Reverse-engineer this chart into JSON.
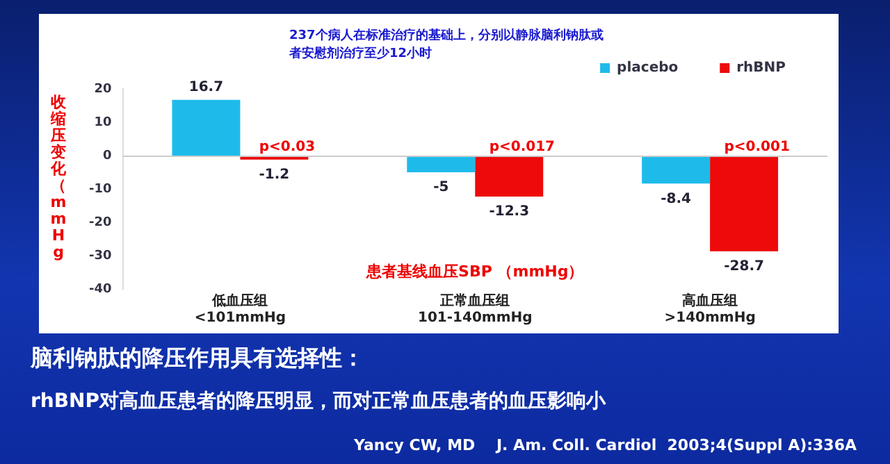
{
  "chart_data": {
    "type": "bar",
    "title": "脑利钠肽的降压作用具有选择性：",
    "subtitle": "rhBNP对高血压患者的降压明显，而对正常血压患者的血压影响小",
    "xlabel": "患者基线血压SBP （mmHg）",
    "ylabel": "收缩压变化（mmHg",
    "categories": [
      "低血压组\n<101mmHg",
      "正常血压组\n101-140mmHg",
      "高血压组\n>140mmHg"
    ],
    "series": [
      {
        "name": "placebo",
        "color": "#1ebbea",
        "values": [
          16.7,
          -5,
          -8.4
        ]
      },
      {
        "name": "rhBNP",
        "color": "#ee0a0a",
        "values": [
          -1.2,
          -12.3,
          -28.7
        ]
      }
    ],
    "ylim": [
      -40,
      20
    ],
    "yticks": [
      -40,
      -30,
      -20,
      -10,
      0,
      10,
      20
    ],
    "legend": "top right",
    "data_labels": true,
    "annotations": [
      "237个病人在标准治疗的基础上，分别以静脉脑利钠肽或者安慰剂治疗至少12小时",
      "p<0.03",
      "p<0.017",
      "p<0.001",
      "Yancy CW, MD    J. Am. Coll. Cardiol  2003;4(Suppl A):336A"
    ]
  }
}
